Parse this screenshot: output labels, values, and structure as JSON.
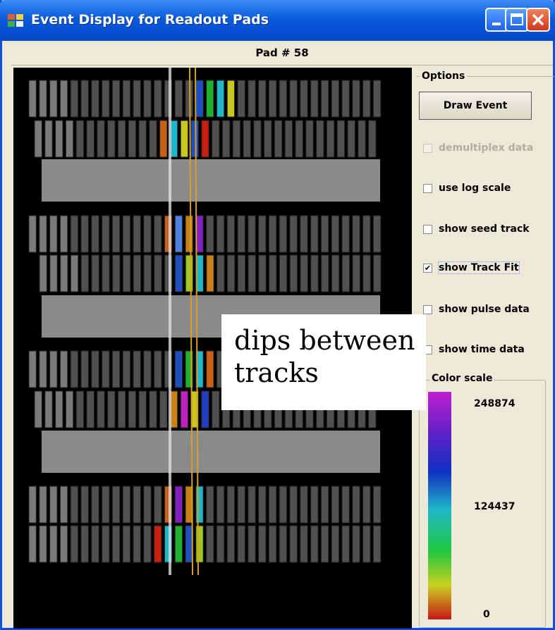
{
  "window": {
    "title": "Event Display for Readout Pads",
    "accent": "#0a5bdc",
    "buttons": [
      "minimize",
      "maximize",
      "close"
    ]
  },
  "pad_label": "Pad # 58",
  "options": {
    "title": "Options",
    "draw_button": "Draw Event",
    "checkboxes": [
      {
        "label": "demultiplex data",
        "checked": false,
        "enabled": false
      },
      {
        "label": "use log scale",
        "checked": false,
        "enabled": true
      },
      {
        "label": "show seed track",
        "checked": false,
        "enabled": true
      },
      {
        "label": "show Track Fit",
        "checked": true,
        "enabled": true
      },
      {
        "label": "show pulse data",
        "checked": false,
        "enabled": true
      },
      {
        "label": "show time data",
        "checked": false,
        "enabled": true
      }
    ]
  },
  "color_scale": {
    "title": "Color scale",
    "max": "248874",
    "mid": "124437",
    "min": "0"
  },
  "annotation": {
    "line1": "dips between",
    "line2": "tracks"
  },
  "event_display": {
    "rows": [
      {
        "type": "pads",
        "highlights": [
          "#2050c0",
          "#20b030",
          "#20b8c8",
          "#c8c820"
        ]
      },
      {
        "type": "pads",
        "highlights": [
          "#c86018",
          "#20b8c8",
          "#c8c820",
          "#2050c0",
          "#c82010"
        ]
      },
      {
        "type": "block"
      },
      {
        "type": "pads",
        "highlights": [
          "#c86018",
          "#5080e0",
          "#c88018",
          "#8020c0"
        ]
      },
      {
        "type": "pads",
        "highlights": [
          "#2050c0",
          "#a0c820",
          "#20b8c8",
          "#c88018"
        ]
      },
      {
        "type": "block"
      },
      {
        "type": "pads",
        "highlights": [
          "#2050c0",
          "#20b030",
          "#20b8c8",
          "#c86018"
        ]
      },
      {
        "type": "pads",
        "highlights": [
          "#c88018",
          "#c020c0",
          "#c8c820",
          "#2040c0"
        ]
      },
      {
        "type": "block"
      },
      {
        "type": "pads",
        "highlights": [
          "#c86018",
          "#8020c0",
          "#c88018",
          "#20b8c8"
        ]
      },
      {
        "type": "pads",
        "highlights": [
          "#c82010",
          "#20b8c8",
          "#20b030",
          "#2050c0",
          "#a0c820"
        ]
      }
    ],
    "colors": {
      "pad": "#505050",
      "pad_edge": "#909090",
      "block": "#8a8a8a",
      "fit_line": "#d8a020",
      "seed_line": "#e0e0e0"
    }
  }
}
